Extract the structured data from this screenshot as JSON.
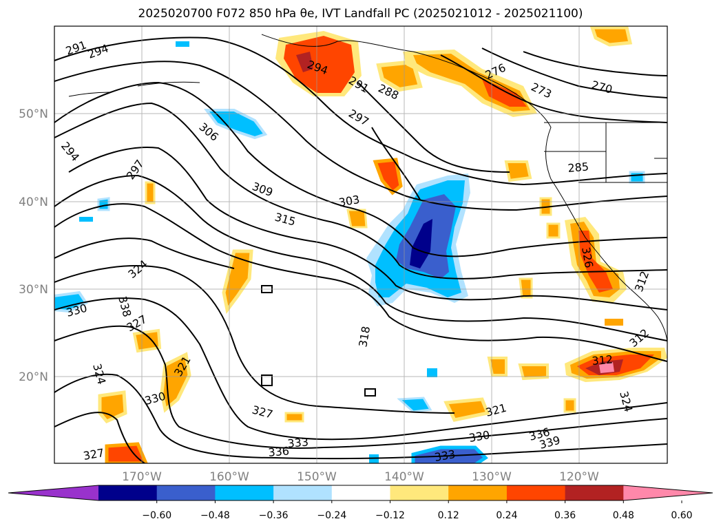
{
  "title": "2025020700 F072 850 hPa θe, IVT Landfall PC (2025021012 - 2025021100)",
  "lat_labels": [
    "50°N",
    "40°N",
    "30°N",
    "20°N"
  ],
  "lon_labels": [
    "170°W",
    "160°W",
    "150°W",
    "140°W",
    "130°W",
    "120°W"
  ],
  "contour_labels": [
    "291",
    "294",
    "294",
    "291",
    "288",
    "297",
    "306",
    "294",
    "297",
    "309",
    "303",
    "315",
    "324",
    "330",
    "338",
    "327",
    "321",
    "330",
    "324",
    "327",
    "327",
    "318",
    "336",
    "333",
    "333",
    "330",
    "321",
    "336",
    "339",
    "324",
    "312",
    "312",
    "312",
    "285",
    "276",
    "273",
    "270",
    "326"
  ],
  "colorbar": {
    "tick_labels": [
      "−0.60",
      "−0.48",
      "−0.36",
      "−0.24",
      "−0.12",
      "0.12",
      "0.24",
      "0.36",
      "0.48",
      "0.60"
    ],
    "colors": [
      "#9932CC",
      "#00008B",
      "#3A5FCD",
      "#00BFFF",
      "#B0E2FF",
      "#FFFFFF",
      "#FFE87C",
      "#FFA500",
      "#FF4500",
      "#B22222",
      "#FF88AA"
    ]
  }
}
